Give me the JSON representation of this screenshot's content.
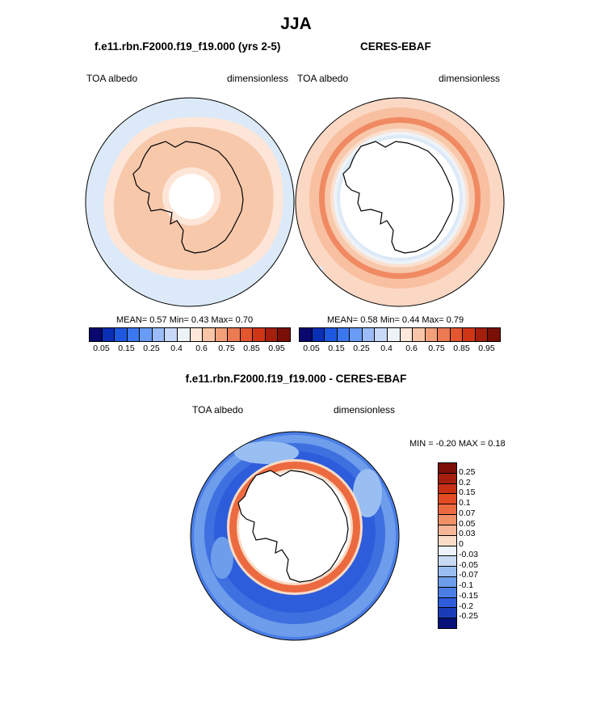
{
  "page": {
    "title": "JJA",
    "diff_title": "f.e11.rbn.F2000.f19_f19.000 - CERES-EBAF"
  },
  "panels": {
    "model": {
      "title": "f.e11.rbn.F2000.f19_f19.000 (yrs 2-5)",
      "left_label": "TOA albedo",
      "right_label": "dimensionless",
      "stats": "MEAN=   0.57  Min=   0.43  Max=   0.70"
    },
    "obs": {
      "title": "CERES-EBAF",
      "left_label": "TOA albedo",
      "right_label": "dimensionless",
      "stats": "MEAN=   0.58  Min=   0.44  Max=   0.79"
    },
    "diff": {
      "left_label": "TOA albedo",
      "right_label": "dimensionless",
      "stats": "MIN =  -0.20 MAX =   0.18"
    }
  },
  "colorbars": {
    "absolute": {
      "colors": [
        "#08086e",
        "#0a2fb5",
        "#1f58e0",
        "#3b78f0",
        "#6a9cf5",
        "#9cbcf7",
        "#c8d9f8",
        "#eef3f8",
        "#fde8da",
        "#f8c5a8",
        "#f2a07a",
        "#ec7a52",
        "#e4562f",
        "#d03616",
        "#a41f0c",
        "#7a0f07"
      ],
      "tick_labels": [
        "0.05",
        "0.15",
        "0.25",
        "0.4",
        "0.6",
        "0.75",
        "0.85",
        "0.95"
      ]
    },
    "difference": {
      "colors": [
        "#7b0f08",
        "#a41f0d",
        "#c83016",
        "#e44b22",
        "#ec6a40",
        "#f19066",
        "#f6b594",
        "#fbdcc7",
        "#edf3fb",
        "#c7dbf5",
        "#99bff2",
        "#6d9deb",
        "#4a7de6",
        "#2e5ddc",
        "#1a3cb8",
        "#08117a"
      ],
      "tick_labels": [
        "0.25",
        "0.2",
        "0.15",
        "0.1",
        "0.07",
        "0.05",
        "0.03",
        "0",
        "-0.03",
        "-0.05",
        "-0.07",
        "-0.1",
        "-0.15",
        "-0.2",
        "-0.25"
      ]
    }
  },
  "chart_data": [
    {
      "type": "heatmap",
      "title": "f.e11.rbn.F2000.f19_f19.000 (yrs 2-5)",
      "projection": "south-polar-stereographic",
      "variable": "TOA albedo",
      "units": "dimensionless",
      "stats": {
        "mean": 0.57,
        "min": 0.43,
        "max": 0.7
      },
      "levels": [
        0.05,
        0.1,
        0.15,
        0.2,
        0.25,
        0.3,
        0.4,
        0.5,
        0.6,
        0.7,
        0.75,
        0.8,
        0.85,
        0.9,
        0.95
      ]
    },
    {
      "type": "heatmap",
      "title": "CERES-EBAF",
      "projection": "south-polar-stereographic",
      "variable": "TOA albedo",
      "units": "dimensionless",
      "stats": {
        "mean": 0.58,
        "min": 0.44,
        "max": 0.79
      },
      "levels": [
        0.05,
        0.1,
        0.15,
        0.2,
        0.25,
        0.3,
        0.4,
        0.5,
        0.6,
        0.7,
        0.75,
        0.8,
        0.85,
        0.9,
        0.95
      ]
    },
    {
      "type": "heatmap",
      "title": "f.e11.rbn.F2000.f19_f19.000 - CERES-EBAF",
      "projection": "south-polar-stereographic",
      "variable": "TOA albedo",
      "units": "dimensionless",
      "stats": {
        "min": -0.2,
        "max": 0.18
      },
      "levels": [
        0.25,
        0.2,
        0.15,
        0.1,
        0.07,
        0.05,
        0.03,
        0,
        -0.03,
        -0.05,
        -0.07,
        -0.1,
        -0.15,
        -0.2,
        -0.25
      ]
    }
  ]
}
